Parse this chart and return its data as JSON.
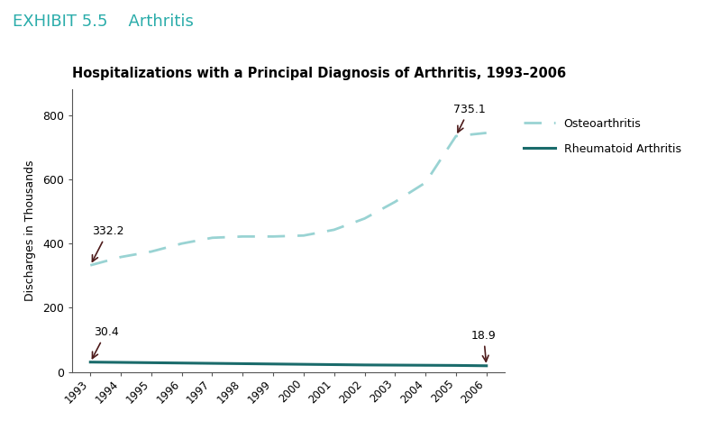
{
  "exhibit_title_part1": "EXHIBIT 5.5",
  "exhibit_title_part2": "Arthritis",
  "chart_title": "Hospitalizations with a Principal Diagnosis of Arthritis, 1993–2006",
  "ylabel": "Discharges in Thousands",
  "years": [
    1993,
    1994,
    1995,
    1996,
    1997,
    1998,
    1999,
    2000,
    2001,
    2002,
    2003,
    2004,
    2005,
    2006
  ],
  "osteoarthritis": [
    332.2,
    358,
    375,
    400,
    418,
    422,
    422,
    425,
    443,
    478,
    530,
    590,
    735.1,
    745
  ],
  "rheumatoid": [
    30.4,
    29.5,
    28.5,
    27.5,
    26.5,
    25.5,
    24.5,
    23.5,
    22.5,
    21.5,
    21.0,
    20.5,
    20.0,
    18.9
  ],
  "osteo_color": "#99d3d3",
  "rheum_color": "#1a6b6b",
  "arrow_color": "#4d1a1a",
  "ylim": [
    0,
    880
  ],
  "yticks": [
    0,
    200,
    400,
    600,
    800
  ],
  "exhibit_color": "#2aacaa",
  "background_color": "#ffffff",
  "legend_osteo": "Osteoarthritis",
  "legend_rheum": "Rheumatoid Arthritis"
}
